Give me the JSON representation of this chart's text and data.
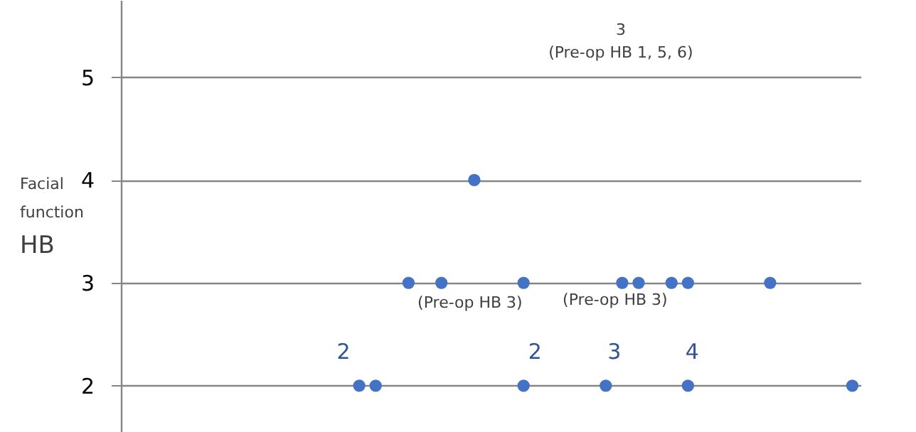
{
  "chart_data": {
    "type": "scatter",
    "ylabel": "Facial function HB",
    "categories": [
      null,
      null,
      null,
      null,
      null,
      null,
      null,
      null,
      null,
      null,
      null,
      null,
      null,
      null,
      null,
      null,
      null,
      null,
      null,
      null,
      null,
      null,
      null,
      null,
      null,
      null,
      null,
      null,
      null,
      null,
      null,
      null,
      null,
      null,
      null,
      null,
      null,
      null,
      null,
      null,
      null,
      null,
      null,
      null,
      null
    ],
    "series": [
      {
        "color": "#4472c4",
        "values": [
          null,
          null,
          null,
          null,
          null,
          null,
          null,
          null,
          null,
          null,
          null,
          null,
          null,
          null,
          2,
          2,
          null,
          null,
          null,
          null,
          null,
          null,
          null,
          null,
          2,
          null,
          null,
          null,
          null,
          2,
          null,
          null,
          null,
          null,
          2,
          null,
          null,
          null,
          null,
          null,
          null,
          null,
          null,
          null,
          2
        ]
      },
      {
        "color": "#4472c4",
        "values": [
          null,
          null,
          null,
          null,
          null,
          null,
          null,
          null,
          null,
          null,
          null,
          null,
          null,
          null,
          null,
          null,
          null,
          3,
          null,
          3,
          null,
          null,
          null,
          null,
          3,
          null,
          null,
          null,
          null,
          null,
          3,
          3,
          null,
          3,
          3,
          null,
          null,
          null,
          null,
          3,
          null,
          null,
          null,
          null,
          null
        ]
      },
      {
        "color": "#4472c4",
        "values": [
          null,
          null,
          null,
          null,
          null,
          null,
          null,
          null,
          null,
          null,
          null,
          null,
          null,
          null,
          null,
          null,
          null,
          null,
          null,
          null,
          null,
          4,
          null,
          null,
          null,
          null,
          null,
          null,
          null,
          null,
          null,
          null,
          null,
          null,
          null,
          null,
          null,
          null,
          null,
          null,
          null,
          null,
          null,
          null,
          null
        ]
      }
    ],
    "ylim": [
      1.55,
      5.75
    ],
    "yticks": [
      2,
      3,
      4,
      5
    ],
    "grid": "y",
    "marker": "circle",
    "tick_labels": "y",
    "annotations": [
      "3\n(Pre-op HB 1, 5, 6)",
      "(Pre-op HB 3)",
      "(Pre-op HB 3)",
      "2",
      "2",
      "3",
      "4"
    ]
  }
}
